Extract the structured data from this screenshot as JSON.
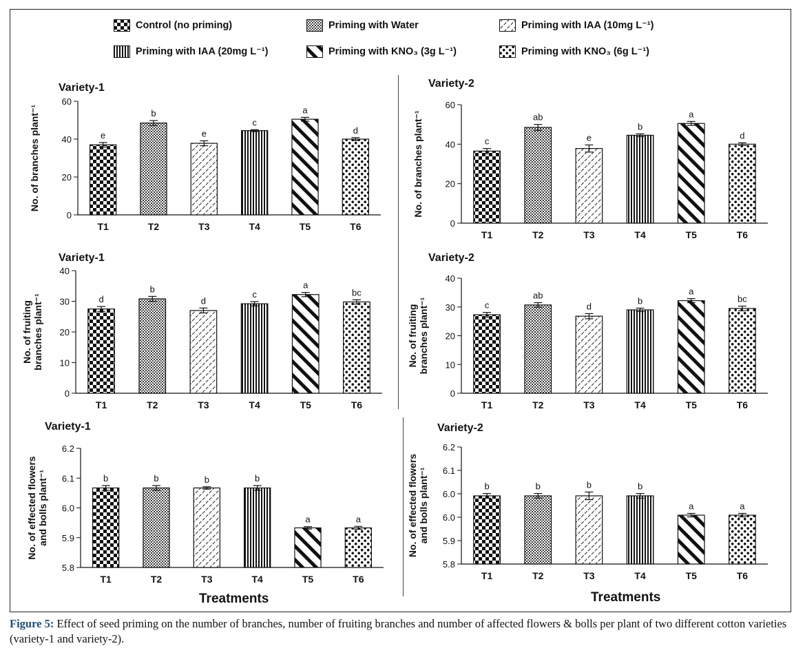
{
  "legend": [
    {
      "label": "Control   (no priming)",
      "pattern": "checker"
    },
    {
      "label": "Priming with Water",
      "pattern": "dots-fine"
    },
    {
      "label": "Priming with IAA (10mg L⁻¹)",
      "pattern": "diag-fine"
    },
    {
      "label": "Priming with IAA (20mg L⁻¹)",
      "pattern": "vertical"
    },
    {
      "label": "Priming with KNO₃ (3g L⁻¹)",
      "pattern": "diag-thick"
    },
    {
      "label": "Priming with KNO₃ (6g L⁻¹)",
      "pattern": "dots-big"
    }
  ],
  "x_axis_title": "Treatments",
  "caption": {
    "label": "Figure 5:",
    "text": " Effect of seed priming on the number of branches, number of fruiting branches and number of affected flowers & bolls per plant of two different cotton varieties (variety-1 and variety-2)."
  },
  "chart_data": [
    {
      "type": "bar",
      "title": "Variety-1",
      "ylabel": [
        "No. of branches plant⁻¹"
      ],
      "categories": [
        "T1",
        "T2",
        "T3",
        "T4",
        "T5",
        "T6"
      ],
      "values": [
        37,
        48.5,
        37.8,
        44.5,
        50.5,
        40
      ],
      "errors": [
        1.2,
        1.3,
        1.3,
        0.5,
        1.0,
        0.8
      ],
      "letters": [
        "e",
        "b",
        "e",
        "c",
        "a",
        "d"
      ],
      "ylim": [
        0,
        60
      ],
      "yticks": [
        "0",
        "20",
        "40",
        "60"
      ]
    },
    {
      "type": "bar",
      "title": "Variety-2",
      "ylabel": [
        "No. of branches plant⁻¹"
      ],
      "categories": [
        "T1",
        "T2",
        "T3",
        "T4",
        "T5",
        "T6"
      ],
      "values": [
        36.5,
        48.5,
        37.8,
        44.5,
        50.5,
        40
      ],
      "errors": [
        1.3,
        1.5,
        1.8,
        0.7,
        1.0,
        0.7
      ],
      "letters": [
        "c",
        "ab",
        "e",
        "b",
        "a",
        "d"
      ],
      "ylim": [
        0,
        60
      ],
      "yticks": [
        "0",
        "20",
        "40",
        "60"
      ]
    },
    {
      "type": "bar",
      "title": "Variety-1",
      "ylabel": [
        "No. of fruiting",
        "branches  plant⁻¹"
      ],
      "categories": [
        "T1",
        "T2",
        "T3",
        "T4",
        "T5",
        "T6"
      ],
      "values": [
        27.5,
        30.8,
        27,
        29.2,
        32.2,
        29.8
      ],
      "errors": [
        0.8,
        0.8,
        0.8,
        0.7,
        0.7,
        0.7
      ],
      "letters": [
        "d",
        "b",
        "d",
        "c",
        "a",
        "bc"
      ],
      "ylim": [
        0,
        40
      ],
      "yticks": [
        "0",
        "10",
        "20",
        "30",
        "40"
      ]
    },
    {
      "type": "bar",
      "title": "Variety-2",
      "ylabel": [
        "No. of fruiting",
        "branches plant⁻¹"
      ],
      "categories": [
        "T1",
        "T2",
        "T3",
        "T4",
        "T5",
        "T6"
      ],
      "values": [
        27.3,
        30.7,
        26.8,
        29,
        32.2,
        29.5
      ],
      "errors": [
        0.8,
        0.8,
        0.9,
        0.6,
        0.7,
        0.8
      ],
      "letters": [
        "c",
        "ab",
        "d",
        "b",
        "a",
        "bc"
      ],
      "ylim": [
        0,
        40
      ],
      "yticks": [
        "0",
        "10",
        "20",
        "30",
        "40"
      ]
    },
    {
      "type": "bar",
      "title": "Variety-1",
      "ylabel": [
        "No. of effected flowers",
        "and bolls plant⁻¹"
      ],
      "categories": [
        "T1",
        "T2",
        "T3",
        "T4",
        "T5",
        "T6"
      ],
      "values": [
        6.067,
        6.067,
        6.067,
        6.067,
        5.933,
        5.933
      ],
      "errors": [
        0.008,
        0.008,
        0.004,
        0.008,
        0.004,
        0.005
      ],
      "letters": [
        "b",
        "b",
        "b",
        "b",
        "a",
        "a"
      ],
      "ylim": [
        5.8,
        6.2
      ],
      "yticks": [
        "5.8",
        "5.9",
        "6.0",
        "6.1",
        "6.2"
      ]
    },
    {
      "type": "bar",
      "title": "Variety-2",
      "ylabel": [
        "No. of effected flowers",
        "and bolls plant⁻¹"
      ],
      "categories": [
        "T1",
        "T2",
        "T3",
        "T4",
        "T5",
        "T6"
      ],
      "values": [
        6.033,
        6.033,
        6.033,
        6.033,
        5.967,
        5.967
      ],
      "errors": [
        0.008,
        0.008,
        0.013,
        0.008,
        0.006,
        0.006
      ],
      "letters": [
        "b",
        "b",
        "b",
        "b",
        "a",
        "a"
      ],
      "ylim": [
        5.8,
        6.2
      ],
      "yticks": [
        "5.8",
        "5.9",
        "6.0",
        "6.0",
        "6.1",
        "6.2"
      ]
    }
  ]
}
